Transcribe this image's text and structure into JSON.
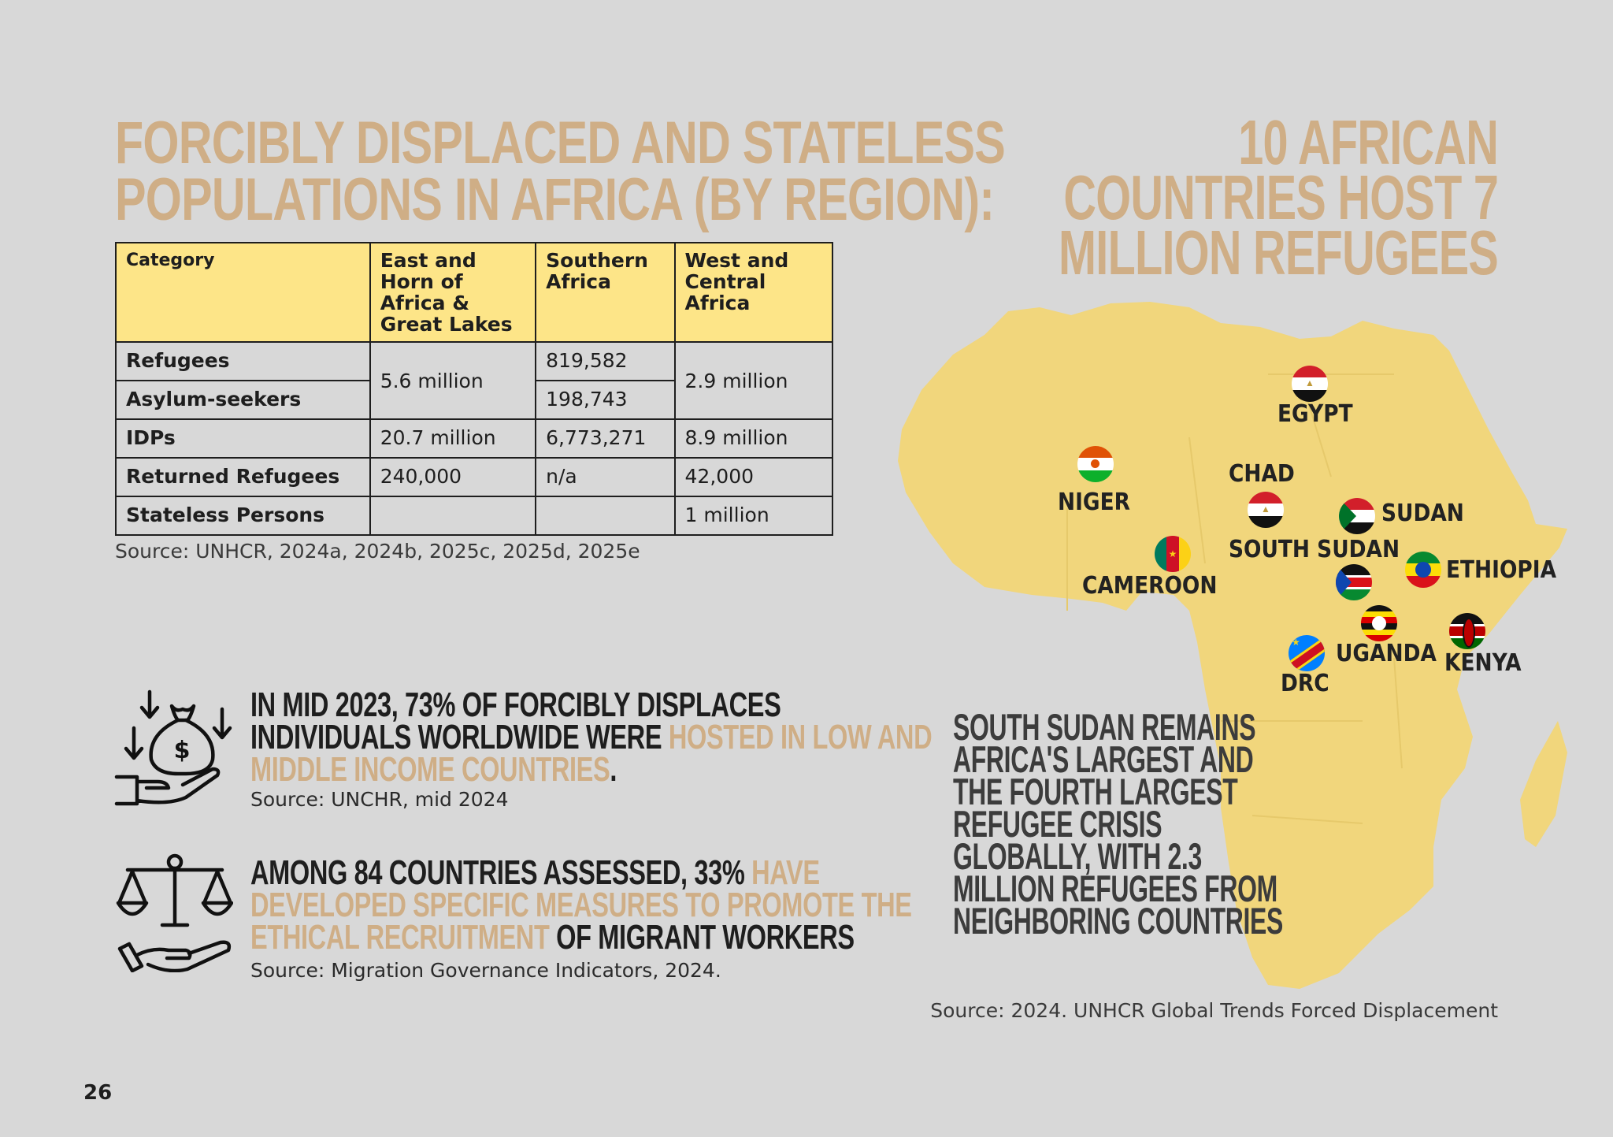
{
  "left_title_lines": [
    "FORCIBLY DISPLACED AND STATELESS",
    "POPULATIONS IN AFRICA (BY REGION):"
  ],
  "table": {
    "headers": [
      "Category",
      "East and Horn of Africa & Great Lakes",
      "Southern Africa",
      "West and Central Africa"
    ],
    "rows": {
      "refugees": {
        "label": "Refugees",
        "southern": "819,582"
      },
      "asylum": {
        "label": "Asylum-seekers",
        "southern": "198,743"
      },
      "refugees_asylum_east": "5.6 million",
      "refugees_asylum_west": "2.9 million",
      "idps": {
        "label": "IDPs",
        "east": "20.7 million",
        "southern": "6,773,271",
        "west": "8.9 million"
      },
      "returned": {
        "label": "Returned Refugees",
        "east": "240,000",
        "southern": "n/a",
        "west": "42,000"
      },
      "stateless": {
        "label": "Stateless Persons",
        "east": "",
        "southern": "",
        "west": "1 million"
      }
    },
    "source": "Source: UNHCR, 2024a, 2024b, 2025c, 2025d, 2025e"
  },
  "fact1": {
    "line1": "IN MID 2023, 73% OF FORCIBLY DISPLACES",
    "line2_dark": "INDIVIDUALS WORLDWIDE WERE ",
    "line2_gold": "HOSTED IN LOW AND",
    "line3_gold": "MIDDLE INCOME COUNTRIES",
    "line3_dark": ".",
    "source": "Source: UNCHR, mid 2024",
    "icon": "money-bag-hand-icon"
  },
  "fact2": {
    "line1_dark": "AMONG 84 COUNTRIES ASSESSED, 33% ",
    "line1_gold": "HAVE",
    "line2_gold": "DEVELOPED SPECIFIC MEASURES TO PROMOTE THE",
    "line3_gold": "ETHICAL RECRUITMENT",
    "line3_dark": " OF MIGRANT WORKERS",
    "source": "Source: Migration Governance Indicators, 2024.",
    "icon": "scales-hand-icon"
  },
  "right_title_lines": [
    "10 AFRICAN",
    "COUNTRIES HOST 7",
    "MILLION REFUGEES"
  ],
  "map": {
    "countries": {
      "egypt": "EGYPT",
      "chad": "CHAD",
      "niger": "NIGER",
      "sudan": "SUDAN",
      "south_sudan": "SOUTH SUDAN",
      "ethiopia": "ETHIOPIA",
      "cameroon": "CAMEROON",
      "uganda": "UGANDA",
      "kenya": "KENYA",
      "drc": "DRC"
    }
  },
  "crisis_lines": [
    "SOUTH SUDAN REMAINS",
    "AFRICA'S LARGEST AND",
    "THE FOURTH LARGEST",
    "REFUGEE CRISIS",
    "GLOBALLY, WITH 2.3",
    "MILLION REFUGEES FROM",
    "NEIGHBORING COUNTRIES"
  ],
  "map_source": "Source: 2024. UNHCR Global Trends Forced Displacement",
  "page_number": "26",
  "colors": {
    "gold": "#cfae86",
    "header_yellow": "#fde588",
    "map_yellow": "#f1d67c",
    "background": "#d8d8d8"
  }
}
